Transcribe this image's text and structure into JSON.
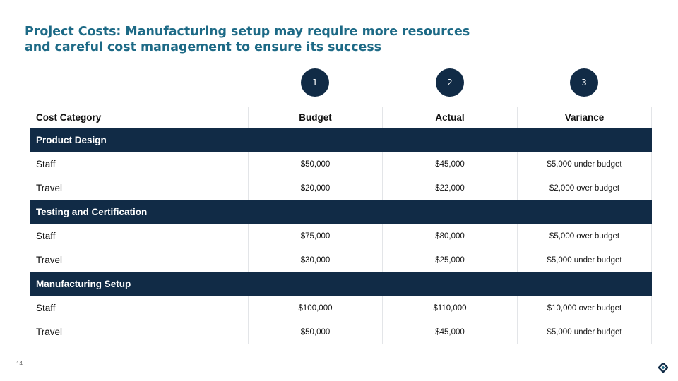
{
  "slide": {
    "title_line1": "Project Costs: Manufacturing setup may require more resources",
    "title_line2": "and careful cost management to ensure its success",
    "page_number": "14",
    "colors": {
      "title": "#1d6a86",
      "dark_navy": "#112b46",
      "grid": "#e3e5e8"
    }
  },
  "badges": [
    "1",
    "2",
    "3"
  ],
  "table": {
    "headers": [
      "Cost Category",
      "Budget",
      "Actual",
      "Variance"
    ],
    "sections": [
      {
        "title": "Product Design",
        "rows": [
          {
            "category": "Staff",
            "budget": "$50,000",
            "actual": "$45,000",
            "variance": "$5,000 under budget"
          },
          {
            "category": "Travel",
            "budget": "$20,000",
            "actual": "$22,000",
            "variance": "$2,000 over budget"
          }
        ]
      },
      {
        "title": "Testing and Certification",
        "rows": [
          {
            "category": "Staff",
            "budget": "$75,000",
            "actual": "$80,000",
            "variance": "$5,000 over budget"
          },
          {
            "category": "Travel",
            "budget": "$30,000",
            "actual": "$25,000",
            "variance": "$5,000 under budget"
          }
        ]
      },
      {
        "title": "Manufacturing Setup",
        "rows": [
          {
            "category": "Staff",
            "budget": "$100,000",
            "actual": "$110,000",
            "variance": "$10,000 over budget"
          },
          {
            "category": "Travel",
            "budget": "$50,000",
            "actual": "$45,000",
            "variance": "$5,000 under budget"
          }
        ]
      }
    ]
  },
  "logo_icon": "diamond-logo-icon"
}
